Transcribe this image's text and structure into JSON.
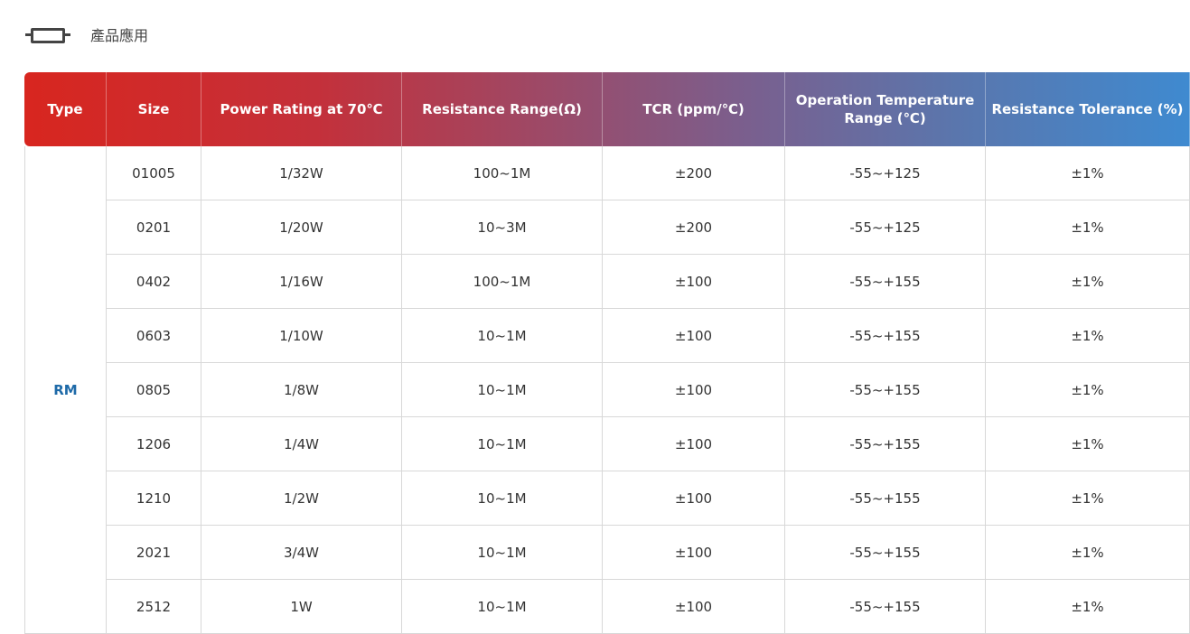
{
  "heading": {
    "icon": "resistor-icon",
    "title": "產品應用"
  },
  "colors": {
    "header_start": "#d8261f",
    "header_end": "#3f8ad0",
    "type_text": "#1e6aa8"
  },
  "table": {
    "headers": [
      "Type",
      "Size",
      "Power Rating at 70℃",
      "Resistance Range(Ω)",
      "TCR (ppm/℃)",
      "Operation Temperature Range (℃)",
      "Resistance Tolerance (%)"
    ],
    "type": "RM",
    "rows": [
      [
        "01005",
        "1/32W",
        "100~1M",
        "±200",
        "-55~+125",
        "±1%"
      ],
      [
        "0201",
        "1/20W",
        "10~3M",
        "±200",
        "-55~+125",
        "±1%"
      ],
      [
        "0402",
        "1/16W",
        "100~1M",
        "±100",
        "-55~+155",
        "±1%"
      ],
      [
        "0603",
        "1/10W",
        "10~1M",
        "±100",
        "-55~+155",
        "±1%"
      ],
      [
        "0805",
        "1/8W",
        "10~1M",
        "±100",
        "-55~+155",
        "±1%"
      ],
      [
        "1206",
        "1/4W",
        "10~1M",
        "±100",
        "-55~+155",
        "±1%"
      ],
      [
        "1210",
        "1/2W",
        "10~1M",
        "±100",
        "-55~+155",
        "±1%"
      ],
      [
        "2021",
        "3/4W",
        "10~1M",
        "±100",
        "-55~+155",
        "±1%"
      ],
      [
        "2512",
        "1W",
        "10~1M",
        "±100",
        "-55~+155",
        "±1%"
      ]
    ]
  }
}
